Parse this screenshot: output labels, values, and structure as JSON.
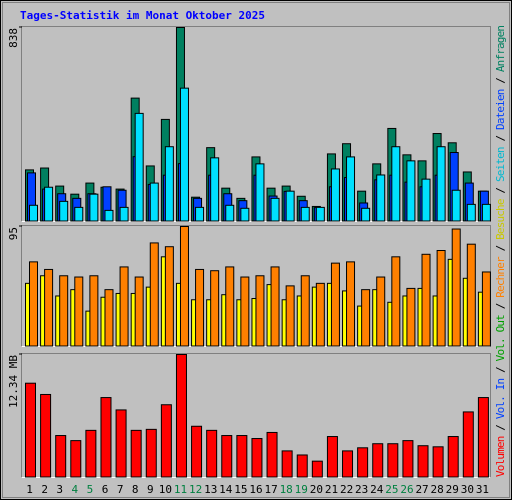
{
  "title": "Tages-Statistik im Monat Oktober 2025",
  "legend_separator": " / ",
  "legend_extra": [
    {
      "name": "Vol. In",
      "color": "#0040ff"
    },
    {
      "name": "Vol. Out",
      "color": "#00a000"
    }
  ],
  "chart_data": [
    {
      "type": "bar",
      "ylim": [
        0,
        838
      ],
      "yticks": [
        838
      ],
      "series": [
        {
          "name": "Anfragen",
          "color": "#008060",
          "values": [
            223,
            231,
            153,
            118,
            166,
            148,
            140,
            533,
            240,
            441,
            838,
            105,
            319,
            144,
            100,
            279,
            144,
            153,
            109,
            65,
            292,
            336,
            131,
            249,
            402,
            288,
            262,
            380,
            340,
            214,
            131
          ]
        },
        {
          "name": "Dateien",
          "color": "#0040ff",
          "values": [
            210,
            140,
            120,
            100,
            120,
            150,
            135,
            280,
            160,
            200,
            250,
            100,
            200,
            120,
            90,
            200,
            110,
            130,
            90,
            60,
            150,
            190,
            80,
            180,
            200,
            170,
            150,
            200,
            298,
            166,
            131
          ]
        },
        {
          "name": "Seiten",
          "color": "#00e0ff",
          "values": [
            70,
            148,
            87,
            61,
            118,
            48,
            61,
            467,
            166,
            323,
            576,
            61,
            275,
            70,
            57,
            249,
            100,
            131,
            61,
            61,
            227,
            279,
            57,
            201,
            323,
            262,
            183,
            323,
            135,
            74,
            74
          ]
        }
      ]
    },
    {
      "type": "bar",
      "ylim": [
        0,
        95
      ],
      "yticks": [
        95
      ],
      "series": [
        {
          "name": "Besuche",
          "color": "#ffff00",
          "values": [
            50,
            56,
            40,
            45,
            28,
            39,
            42,
            42,
            47,
            71,
            50,
            37,
            37,
            41,
            37,
            38,
            49,
            37,
            40,
            47,
            50,
            44,
            32,
            45,
            35,
            40,
            46,
            40,
            69,
            54,
            43
          ]
        },
        {
          "name": "Rechner",
          "color": "#ff8000",
          "values": [
            67,
            61,
            56,
            55,
            56,
            45,
            63,
            55,
            82,
            79,
            95,
            61,
            60,
            63,
            55,
            56,
            63,
            48,
            56,
            50,
            66,
            67,
            45,
            55,
            71,
            46,
            73,
            76,
            93,
            81,
            59
          ]
        }
      ]
    },
    {
      "type": "bar",
      "ylim": [
        0,
        12.34
      ],
      "yticks": [
        {
          "value": 12.34,
          "label": "12.34 MB"
        }
      ],
      "categories": [
        "1",
        "2",
        "3",
        "4",
        "5",
        "6",
        "7",
        "8",
        "9",
        "10",
        "11",
        "12",
        "13",
        "14",
        "15",
        "16",
        "17",
        "18",
        "19",
        "20",
        "21",
        "22",
        "23",
        "24",
        "25",
        "26",
        "27",
        "28",
        "29",
        "30",
        "31"
      ],
      "category_colors": [
        "#000000",
        "#000000",
        "#000000",
        "#008040",
        "#008040",
        "#000000",
        "#000000",
        "#000000",
        "#000000",
        "#000000",
        "#008040",
        "#008040",
        "#000000",
        "#000000",
        "#000000",
        "#000000",
        "#000000",
        "#008040",
        "#008040",
        "#000000",
        "#000000",
        "#000000",
        "#000000",
        "#000000",
        "#008040",
        "#008040",
        "#000000",
        "#000000",
        "#000000",
        "#000000",
        "#000000"
      ],
      "series": [
        {
          "name": "Volumen",
          "color": "#ff0000",
          "values": [
            9.46,
            8.33,
            4.21,
            3.7,
            4.73,
            8.02,
            6.78,
            4.73,
            4.83,
            7.3,
            12.34,
            5.14,
            4.73,
            4.21,
            4.21,
            3.91,
            4.52,
            2.67,
            2.26,
            1.64,
            4.11,
            2.67,
            2.98,
            3.39,
            3.39,
            3.7,
            3.19,
            3.08,
            4.11,
            6.58,
            8.02
          ]
        }
      ]
    }
  ]
}
